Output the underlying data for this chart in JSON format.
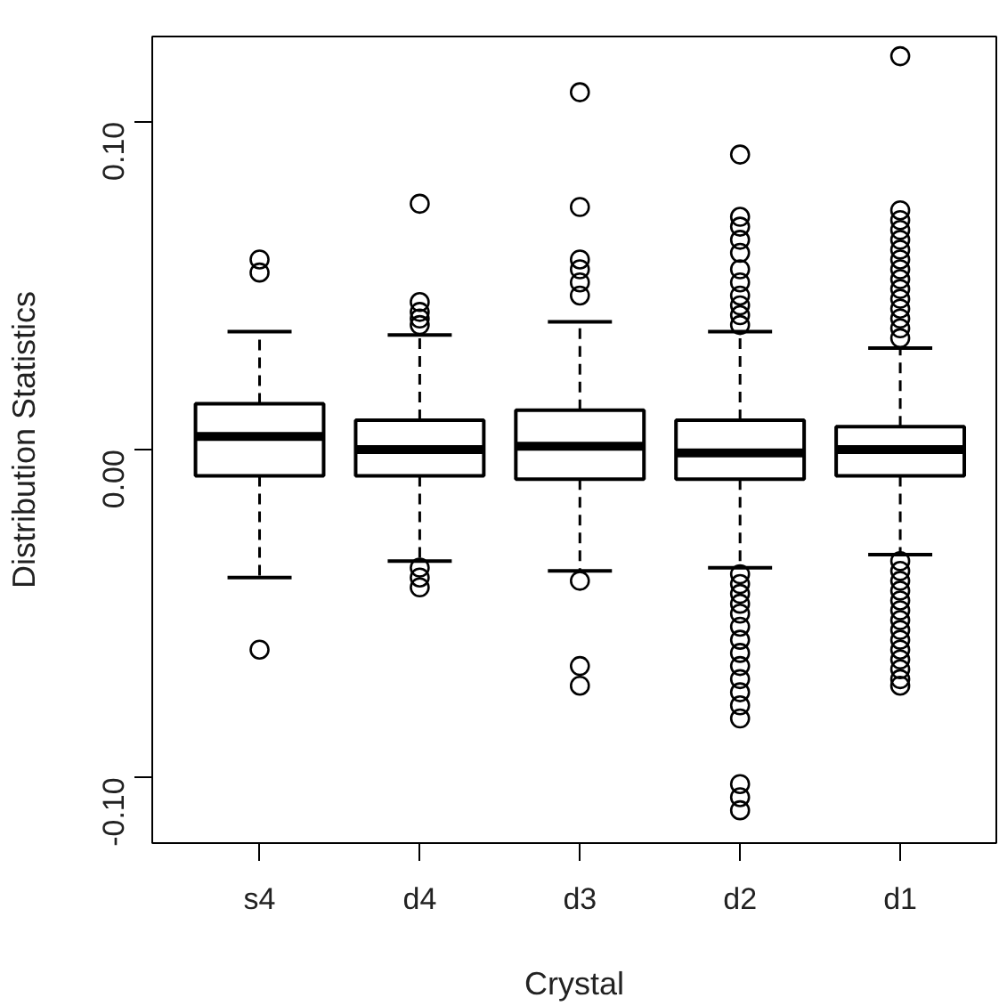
{
  "chart_data": {
    "type": "box",
    "xlabel": "Crystal",
    "ylabel": "Distribution Statistics",
    "categories": [
      "s4",
      "d4",
      "d3",
      "d2",
      "d1"
    ],
    "ylim": [
      -0.12,
      0.126
    ],
    "yticks": [
      {
        "value": -0.1,
        "label": "-0.10"
      },
      {
        "value": 0.0,
        "label": "0.00"
      },
      {
        "value": 0.1,
        "label": "0.10"
      }
    ],
    "grid": false,
    "boxes": [
      {
        "low": -0.039,
        "q1": -0.008,
        "median": 0.004,
        "q3": 0.014,
        "high": 0.036,
        "outliers": [
          0.058,
          0.054,
          -0.061
        ]
      },
      {
        "low": -0.034,
        "q1": -0.008,
        "median": 0.0,
        "q3": 0.009,
        "high": 0.035,
        "outliers": [
          0.075,
          0.045,
          0.042,
          0.04,
          0.038,
          -0.036,
          -0.039,
          -0.042
        ]
      },
      {
        "low": -0.037,
        "q1": -0.009,
        "median": 0.001,
        "q3": 0.012,
        "high": 0.039,
        "outliers": [
          0.109,
          0.074,
          0.058,
          0.055,
          0.051,
          0.047,
          -0.04,
          -0.066,
          -0.072
        ]
      },
      {
        "low": -0.036,
        "q1": -0.009,
        "median": -0.001,
        "q3": 0.009,
        "high": 0.036,
        "outliers": [
          0.09,
          0.071,
          0.068,
          0.064,
          0.06,
          0.055,
          0.051,
          0.047,
          0.044,
          0.041,
          0.038,
          -0.038,
          -0.041,
          -0.044,
          -0.047,
          -0.05,
          -0.054,
          -0.058,
          -0.062,
          -0.066,
          -0.07,
          -0.074,
          -0.078,
          -0.082,
          -0.102,
          -0.106,
          -0.11
        ]
      },
      {
        "low": -0.032,
        "q1": -0.008,
        "median": 0.0,
        "q3": 0.007,
        "high": 0.031,
        "outliers": [
          0.12,
          0.073,
          0.07,
          0.067,
          0.064,
          0.061,
          0.058,
          0.055,
          0.052,
          0.049,
          0.046,
          0.043,
          0.04,
          0.037,
          0.034,
          -0.034,
          -0.037,
          -0.04,
          -0.043,
          -0.046,
          -0.049,
          -0.052,
          -0.055,
          -0.058,
          -0.061,
          -0.064,
          -0.067,
          -0.07,
          -0.072
        ]
      }
    ]
  }
}
